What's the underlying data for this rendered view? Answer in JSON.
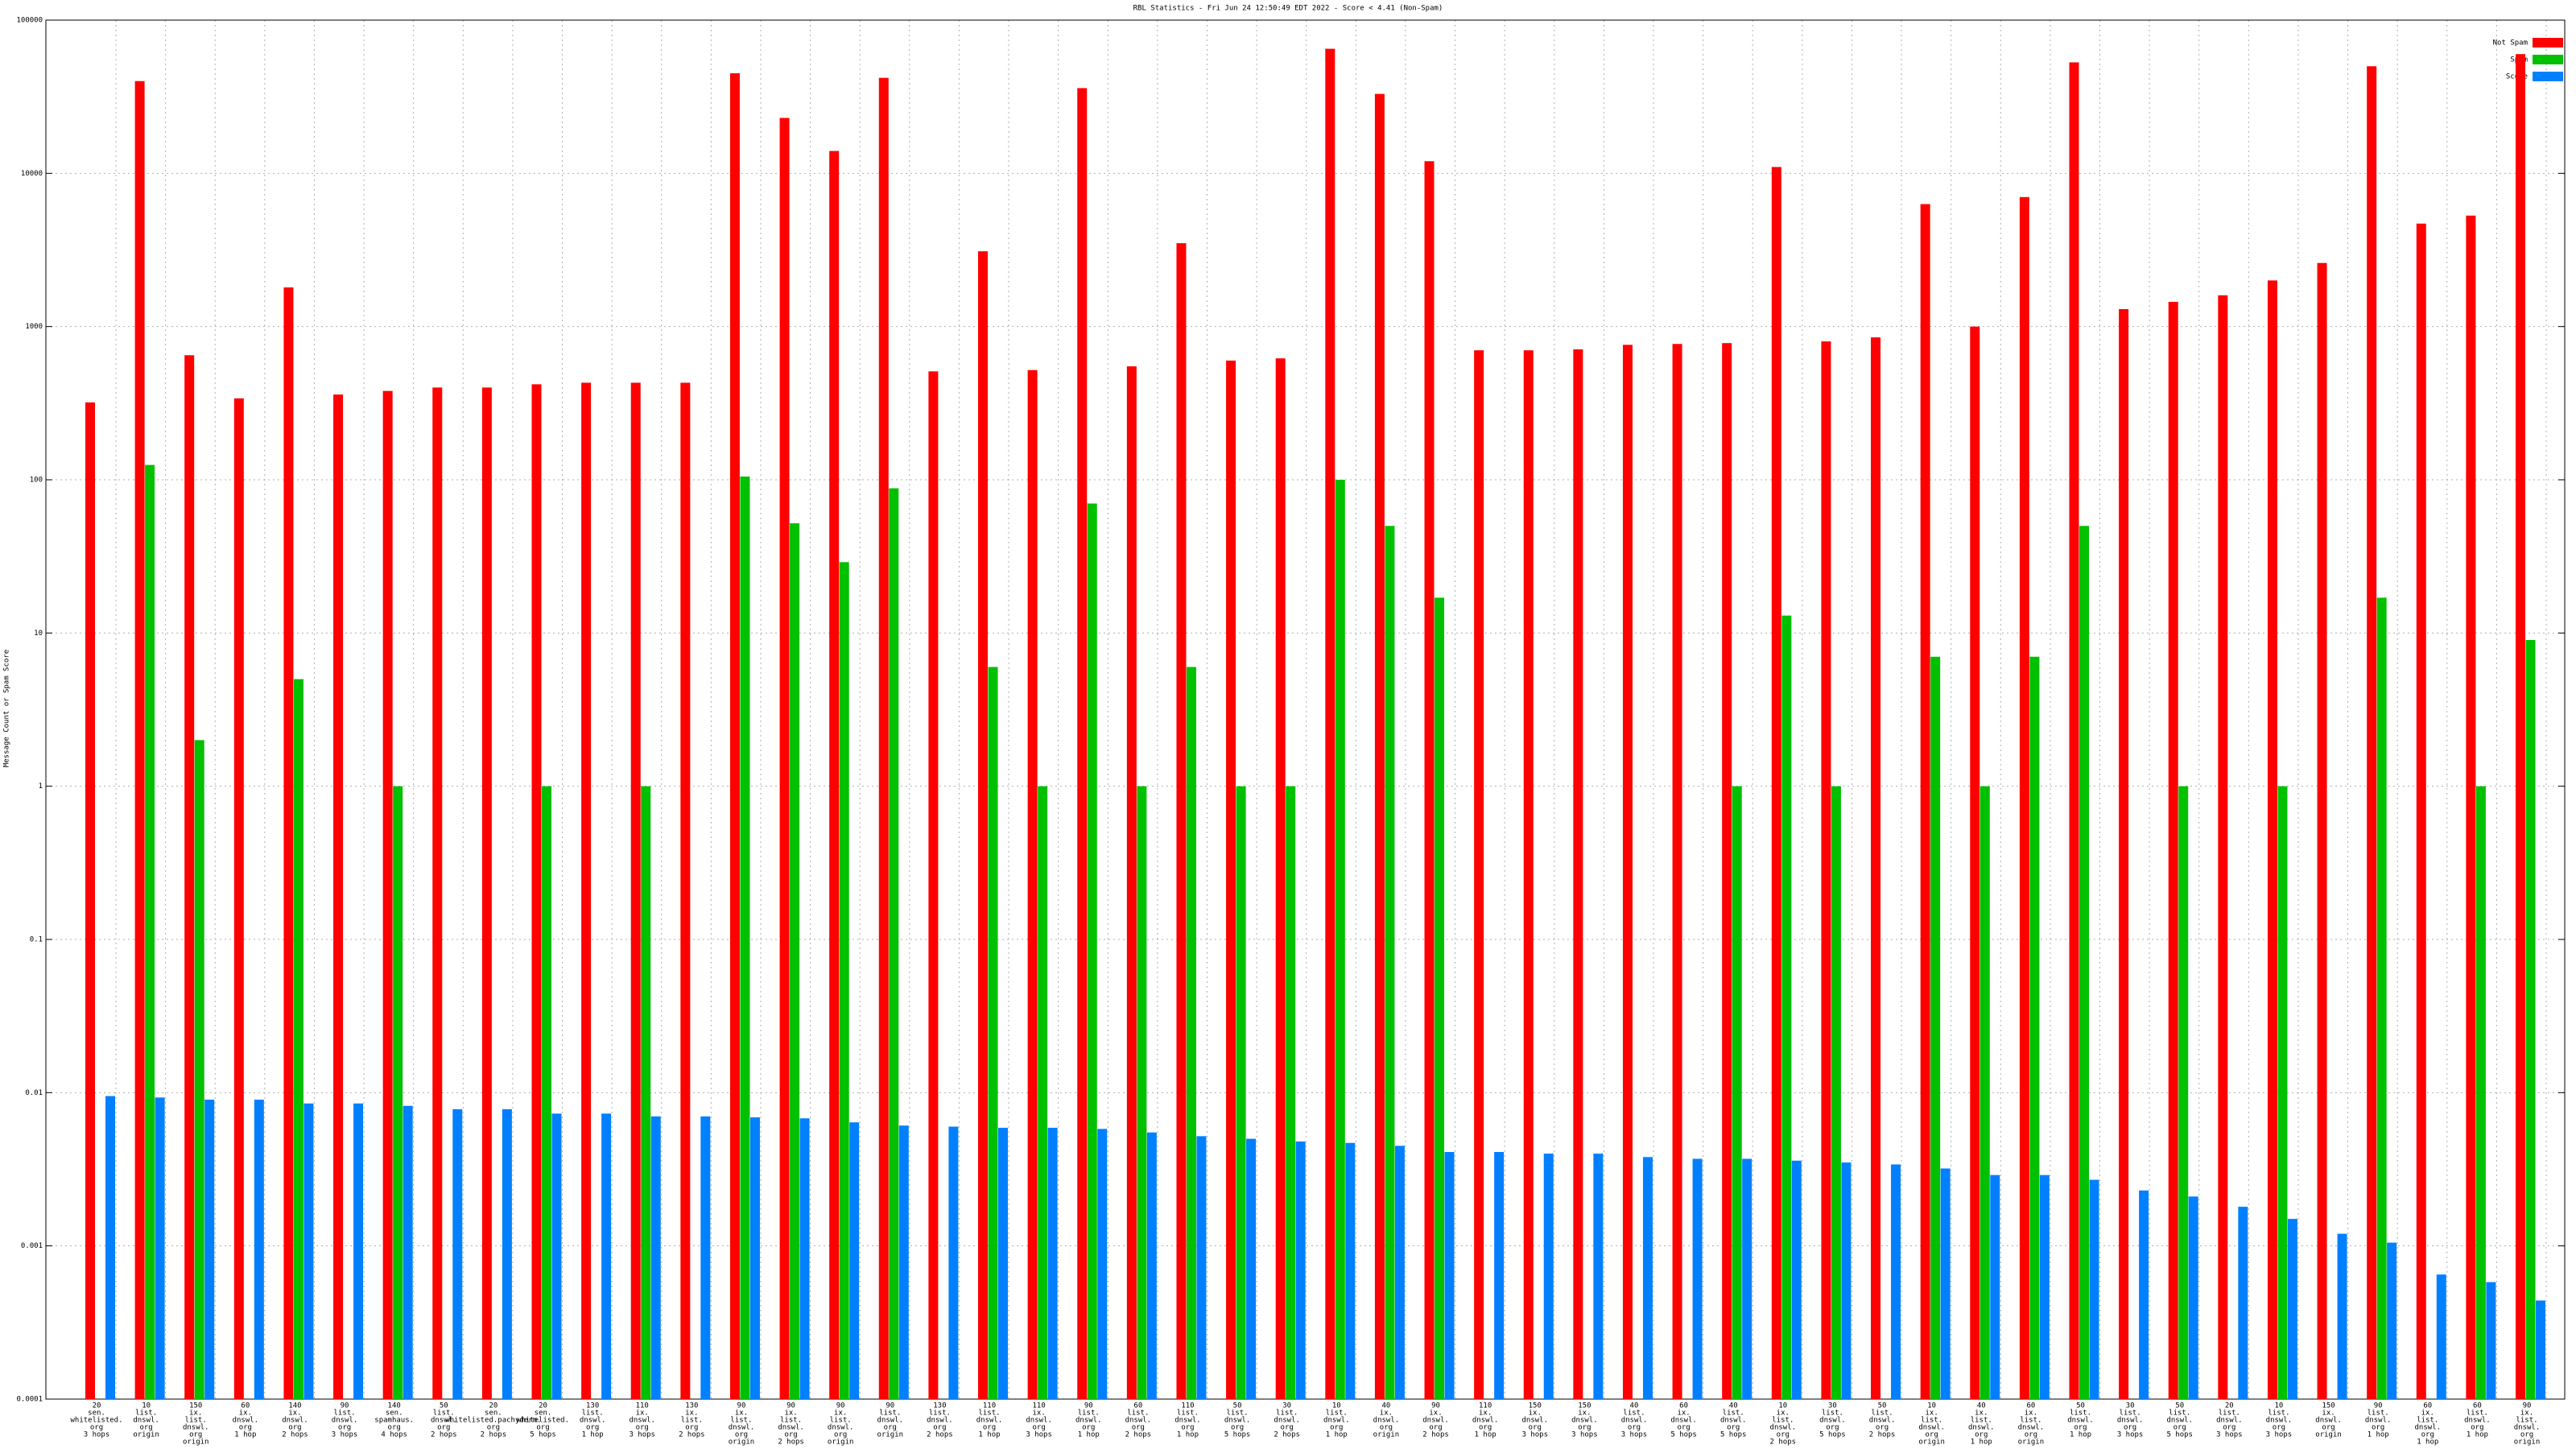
{
  "chart_data": {
    "type": "bar",
    "title": "RBL Statistics - Fri Jun 24 12:50:49 EDT 2022 - Score < 4.41 (Non-Spam)",
    "y_label": "Message Count or Spam Score",
    "log_scale": true,
    "grid": true,
    "legend": "top-right",
    "ylim": [
      0.0001,
      100000
    ],
    "yticks": [
      0.0001,
      0.001,
      0.01,
      0.1,
      1,
      10,
      100,
      1000,
      10000,
      100000
    ],
    "categories": [
      [
        "20",
        "sen.",
        "whitelisted.",
        "org",
        "3 hops"
      ],
      [
        "10",
        "list.",
        "dnswl.",
        "org",
        "origin"
      ],
      [
        "150",
        "ix.",
        "list.",
        "dnswl.",
        "org",
        "origin"
      ],
      [
        "60",
        "ix.",
        "dnswl.",
        "org",
        "1 hop"
      ],
      [
        "140",
        "ix.",
        "dnswl.",
        "org",
        "2 hops"
      ],
      [
        "90",
        "list.",
        "dnswl.",
        "org",
        "3 hops"
      ],
      [
        "140",
        "sen.",
        "spamhaus.",
        "org",
        "4 hops"
      ],
      [
        "50",
        "list.",
        "dnswl.",
        "org",
        "2 hops"
      ],
      [
        "20",
        "sen.",
        "whitelisted.pachyderm.",
        "org",
        "2 hops"
      ],
      [
        "20",
        "sen.",
        "whitelisted.",
        "org",
        "5 hops"
      ],
      [
        "130",
        "list.",
        "dnswl.",
        "org",
        "1 hop"
      ],
      [
        "110",
        "ix.",
        "dnswl.",
        "org",
        "3 hops"
      ],
      [
        "130",
        "ix.",
        "list.",
        "org",
        "2 hops"
      ],
      [
        "90",
        "ix.",
        "list.",
        "dnswl.",
        "org",
        "origin"
      ],
      [
        "90",
        "ix.",
        "list.",
        "dnswl.",
        "org",
        "2 hops"
      ],
      [
        "90",
        "ix.",
        "list.",
        "dnswl.",
        "org",
        "origin"
      ],
      [
        "90",
        "list.",
        "dnswl.",
        "org",
        "origin"
      ],
      [
        "130",
        "list.",
        "dnswl.",
        "org",
        "2 hops"
      ],
      [
        "110",
        "list.",
        "dnswl.",
        "org",
        "1 hop"
      ],
      [
        "110",
        "ix.",
        "dnswl.",
        "org",
        "3 hops"
      ],
      [
        "90",
        "list.",
        "dnswl.",
        "org",
        "1 hop"
      ],
      [
        "60",
        "list.",
        "dnswl.",
        "org",
        "2 hops"
      ],
      [
        "110",
        "list.",
        "dnswl.",
        "org",
        "1 hop"
      ],
      [
        "50",
        "list.",
        "dnswl.",
        "org",
        "5 hops"
      ],
      [
        "30",
        "list.",
        "dnswl.",
        "org",
        "2 hops"
      ],
      [
        "10",
        "list.",
        "dnswl.",
        "org",
        "1 hop"
      ],
      [
        "40",
        "ix.",
        "dnswl.",
        "org",
        "origin"
      ],
      [
        "90",
        "ix.",
        "dnswl.",
        "org",
        "2 hops"
      ],
      [
        "110",
        "ix.",
        "dnswl.",
        "org",
        "1 hop"
      ],
      [
        "150",
        "ix.",
        "dnswl.",
        "org",
        "3 hops"
      ],
      [
        "150",
        "ix.",
        "dnswl.",
        "org",
        "3 hops"
      ],
      [
        "40",
        "list.",
        "dnswl.",
        "org",
        "3 hops"
      ],
      [
        "60",
        "ix.",
        "dnswl.",
        "org",
        "5 hops"
      ],
      [
        "40",
        "list.",
        "dnswl.",
        "org",
        "5 hops"
      ],
      [
        "10",
        "ix.",
        "list.",
        "dnswl.",
        "org",
        "2 hops"
      ],
      [
        "30",
        "list.",
        "dnswl.",
        "org",
        "5 hops"
      ],
      [
        "50",
        "list.",
        "dnswl.",
        "org",
        "2 hops"
      ],
      [
        "10",
        "ix.",
        "list.",
        "dnswl.",
        "org",
        "origin"
      ],
      [
        "40",
        "ix.",
        "list.",
        "dnswl.",
        "org",
        "1 hop"
      ],
      [
        "60",
        "ix.",
        "list.",
        "dnswl.",
        "org",
        "origin"
      ],
      [
        "50",
        "list.",
        "dnswl.",
        "org",
        "1 hop"
      ],
      [
        "30",
        "list.",
        "dnswl.",
        "org",
        "3 hops"
      ],
      [
        "50",
        "list.",
        "dnswl.",
        "org",
        "5 hops"
      ],
      [
        "20",
        "list.",
        "dnswl.",
        "org",
        "3 hops"
      ],
      [
        "10",
        "list.",
        "dnswl.",
        "org",
        "3 hops"
      ],
      [
        "150",
        "ix.",
        "dnswl.",
        "org",
        "origin"
      ],
      [
        "90",
        "list.",
        "dnswl.",
        "org",
        "1 hop"
      ],
      [
        "60",
        "ix.",
        "list.",
        "dnswl.",
        "org",
        "1 hop"
      ],
      [
        "60",
        "list.",
        "dnswl.",
        "org",
        "1 hop"
      ],
      [
        "90",
        "ix.",
        "list.",
        "dnswl.",
        "org",
        "origin"
      ]
    ],
    "series": [
      {
        "name": "Not Spam",
        "color": "#ff0000",
        "values": [
          320,
          40000,
          650,
          340,
          1800,
          360,
          380,
          400,
          400,
          420,
          430,
          430,
          430,
          45000,
          23000,
          14000,
          42000,
          510,
          3100,
          520,
          36000,
          550,
          3500,
          600,
          620,
          65000,
          33000,
          12000,
          700,
          700,
          710,
          760,
          770,
          780,
          11000,
          800,
          850,
          6300,
          1000,
          7000,
          53000,
          1300,
          1450,
          1600,
          2000,
          2600,
          50000,
          4700,
          5300,
          60000
        ]
      },
      {
        "name": "Spam",
        "color": "#00c000",
        "values": [
          null,
          125,
          2,
          null,
          5,
          null,
          1,
          null,
          null,
          1,
          null,
          1,
          null,
          105,
          52,
          29,
          88,
          null,
          6,
          1,
          70,
          1,
          6,
          1,
          1,
          100,
          50,
          17,
          null,
          null,
          null,
          null,
          null,
          1,
          13,
          1,
          null,
          7,
          1,
          7,
          50,
          null,
          1,
          null,
          1,
          null,
          17,
          null,
          1,
          9
        ]
      },
      {
        "name": "Score",
        "color": "#0080ff",
        "values": [
          0.0095,
          0.0093,
          0.009,
          0.009,
          0.0085,
          0.0085,
          0.0082,
          0.0078,
          0.0078,
          0.0073,
          0.0073,
          0.007,
          0.007,
          0.0069,
          0.0068,
          0.0064,
          0.0061,
          0.006,
          0.0059,
          0.0059,
          0.0058,
          0.0055,
          0.0052,
          0.005,
          0.0048,
          0.0047,
          0.0045,
          0.0041,
          0.0041,
          0.004,
          0.004,
          0.0038,
          0.0037,
          0.0037,
          0.0036,
          0.0035,
          0.0034,
          0.0032,
          0.0029,
          0.0029,
          0.0027,
          0.0023,
          0.0021,
          0.0018,
          0.0015,
          0.0012,
          0.00105,
          0.00065,
          0.00058,
          0.00044
        ]
      }
    ]
  }
}
